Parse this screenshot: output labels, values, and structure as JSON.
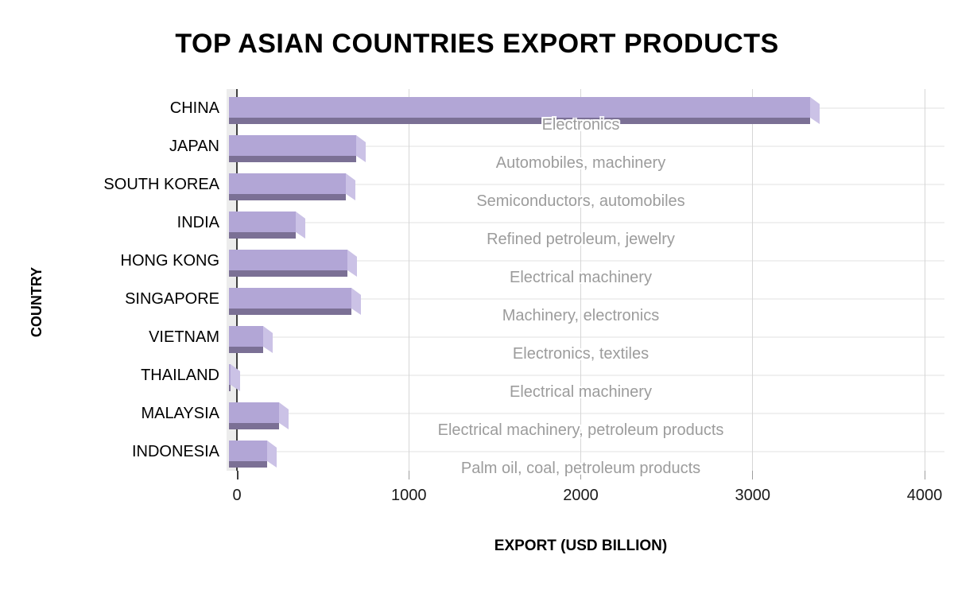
{
  "chart_data": {
    "type": "bar",
    "orientation": "horizontal",
    "effect": "3d",
    "title": "TOP ASIAN COUNTRIES EXPORT PRODUCTS",
    "xlabel": "EXPORT (USD BILLION)",
    "ylabel": "COUNTRY",
    "xlim": [
      0,
      4000
    ],
    "x_ticks": [
      0,
      1000,
      2000,
      3000,
      4000
    ],
    "grid": true,
    "legend_position": "none",
    "categories": [
      "CHINA",
      "JAPAN",
      "SOUTH KOREA",
      "INDIA",
      "HONG KONG",
      "SINGAPORE",
      "VIETNAM",
      "THAILAND",
      "MALAYSIA",
      "INDONESIA"
    ],
    "values": [
      3380,
      740,
      680,
      390,
      690,
      710,
      200,
      10,
      290,
      220
    ],
    "bar_labels": [
      "Electronics",
      "Automobiles, machinery",
      "Semiconductors, automobiles",
      "Refined petroleum, jewelry",
      "Electrical machinery",
      "Machinery, electronics",
      "Electronics, textiles",
      "Electrical machinery",
      "Electrical machinery, petroleum products",
      "Palm oil, coal, petroleum products"
    ],
    "colors": {
      "bar_face": "#b2a6d6",
      "bar_side": "#cbc2e6",
      "bar_bottom": "#7b7095",
      "annotation_text": "#9c9c9c",
      "axis_line": "#404040",
      "gridline_vertical": "#d6d6d6",
      "gridline_horizontal": "#f0f0f0"
    }
  }
}
